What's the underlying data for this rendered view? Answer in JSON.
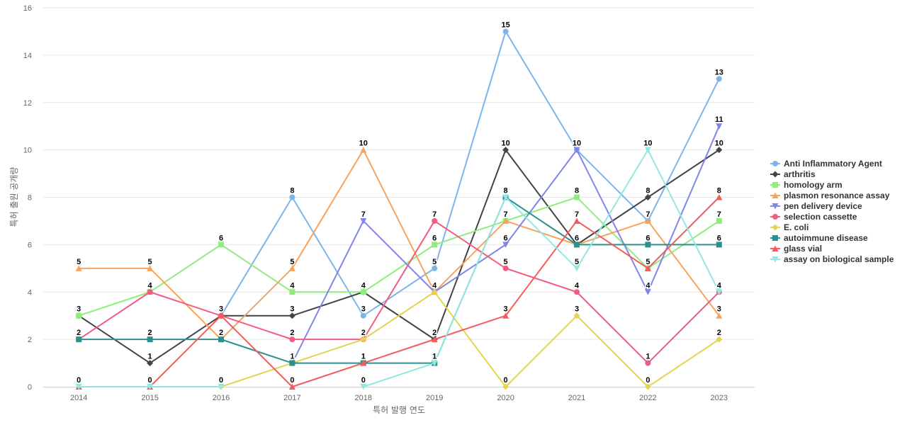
{
  "chart_data": {
    "type": "line",
    "title": "",
    "xlabel": "특허 발행 연도",
    "ylabel": "특허 출원 공개량",
    "ylim": [
      0,
      16
    ],
    "yticks": [
      0,
      2,
      4,
      6,
      8,
      10,
      12,
      14,
      16
    ],
    "categories": [
      "2014",
      "2015",
      "2016",
      "2017",
      "2018",
      "2019",
      "2020",
      "2021",
      "2022",
      "2023"
    ],
    "grid": true,
    "legend_position": "right",
    "series": [
      {
        "name": "Anti Inflammatory Agent",
        "color": "#7cb5ec",
        "marker": "circle",
        "values": [
          null,
          null,
          3,
          8,
          3,
          5,
          15,
          10,
          7,
          13
        ]
      },
      {
        "name": "arthritis",
        "color": "#434348",
        "marker": "diamond",
        "values": [
          3,
          1,
          3,
          3,
          4,
          2,
          10,
          6,
          8,
          10
        ]
      },
      {
        "name": "homology arm",
        "color": "#90ed7d",
        "marker": "square",
        "values": [
          3,
          4,
          6,
          4,
          4,
          6,
          7,
          8,
          5,
          7
        ]
      },
      {
        "name": "plasmon resonance assay",
        "color": "#f7a35c",
        "marker": "triangle",
        "values": [
          5,
          5,
          2,
          5,
          10,
          4,
          7,
          6,
          7,
          3
        ]
      },
      {
        "name": "pen delivery device",
        "color": "#8085e9",
        "marker": "triangle-down",
        "values": [
          null,
          null,
          null,
          1,
          7,
          4,
          6,
          10,
          4,
          11
        ]
      },
      {
        "name": "selection cassette",
        "color": "#f15c80",
        "marker": "circle",
        "values": [
          2,
          4,
          3,
          2,
          2,
          7,
          5,
          4,
          1,
          4
        ]
      },
      {
        "name": "E. coli",
        "color": "#e4d354",
        "marker": "diamond",
        "values": [
          null,
          null,
          0,
          1,
          2,
          4,
          0,
          3,
          0,
          2
        ]
      },
      {
        "name": "autoimmune disease",
        "color": "#2b908f",
        "marker": "square",
        "values": [
          2,
          2,
          2,
          1,
          1,
          1,
          8,
          6,
          6,
          6
        ]
      },
      {
        "name": "glass vial",
        "color": "#f45b5b",
        "marker": "triangle",
        "values": [
          0,
          0,
          3,
          0,
          1,
          2,
          3,
          7,
          5,
          8
        ]
      },
      {
        "name": "assay on biological sample",
        "color": "#91e8e1",
        "marker": "triangle-down",
        "values": [
          0,
          0,
          0,
          null,
          0,
          1,
          8,
          5,
          10,
          4
        ]
      }
    ]
  }
}
